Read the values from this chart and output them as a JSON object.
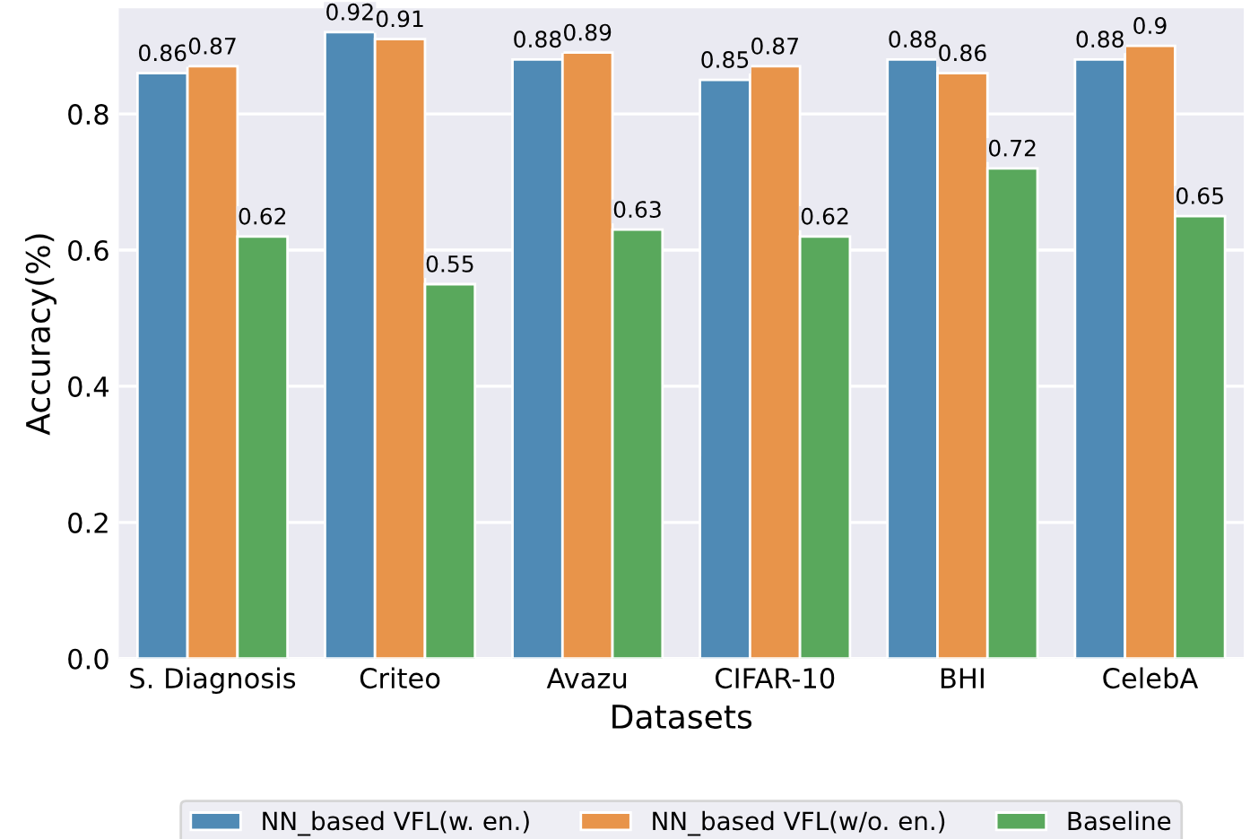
{
  "chart_data": {
    "type": "bar",
    "xlabel": "Datasets",
    "ylabel": "Accuracy(%)",
    "categories": [
      "S. Diagnosis",
      "Criteo",
      "Avazu",
      "CIFAR-10",
      "BHI",
      "CelebA"
    ],
    "series": [
      {
        "name": "NN_based VFL(w. en.)",
        "color": "#4f8ab5",
        "values": [
          0.86,
          0.92,
          0.88,
          0.85,
          0.88,
          0.88
        ]
      },
      {
        "name": "NN_based VFL(w/o. en.)",
        "color": "#e8944a",
        "values": [
          0.87,
          0.91,
          0.89,
          0.87,
          0.86,
          0.9
        ]
      },
      {
        "name": "Baseline",
        "color": "#59a85c",
        "values": [
          0.62,
          0.55,
          0.63,
          0.62,
          0.72,
          0.65
        ]
      }
    ],
    "ylim": [
      0,
      0.955
    ],
    "yticks": [
      {
        "value": 0,
        "label": "0.0"
      },
      0.2,
      0.4,
      0.6,
      0.8
    ],
    "grid": "y",
    "legend": "bottom",
    "data_labels": true
  }
}
